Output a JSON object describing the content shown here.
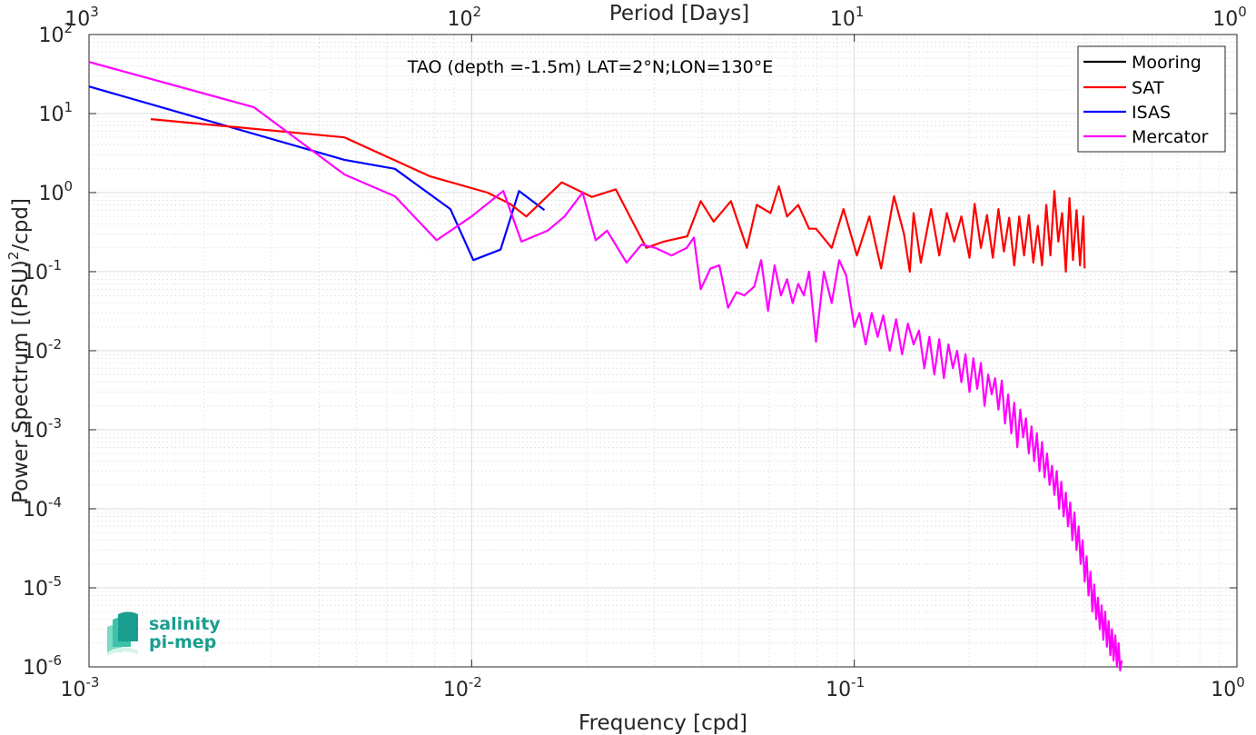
{
  "chart_data": {
    "type": "line",
    "title": "TAO (depth =-1.5m) LAT=2°N;LON=130°E",
    "xlabel": "Frequency [cpd]",
    "ylabel_main": "Power Spectrum [(PSU)",
    "ylabel_sup": "2",
    "ylabel_tail": "/cpd]",
    "top_axis_label": "Period [Days]",
    "x_scale": "log",
    "y_scale": "log",
    "xlim": [
      0.001,
      1
    ],
    "ylim": [
      1e-06,
      100
    ],
    "grid": true,
    "legend_position": "top-right",
    "x_ticks": [
      {
        "base": "10",
        "exp": "-3",
        "value": 0.001
      },
      {
        "base": "10",
        "exp": "-2",
        "value": 0.01
      },
      {
        "base": "10",
        "exp": "-1",
        "value": 0.1
      },
      {
        "base": "10",
        "exp": "0",
        "value": 1
      }
    ],
    "top_ticks": [
      {
        "base": "10",
        "exp": "3",
        "value": 0.001
      },
      {
        "base": "10",
        "exp": "2",
        "value": 0.01
      },
      {
        "base": "10",
        "exp": "1",
        "value": 0.1
      },
      {
        "base": "10",
        "exp": "0",
        "value": 1
      }
    ],
    "y_ticks": [
      {
        "base": "10",
        "exp": "2",
        "value": 100
      },
      {
        "base": "10",
        "exp": "1",
        "value": 10
      },
      {
        "base": "10",
        "exp": "0",
        "value": 1
      },
      {
        "base": "10",
        "exp": "-1",
        "value": 0.1
      },
      {
        "base": "10",
        "exp": "-2",
        "value": 0.01
      },
      {
        "base": "10",
        "exp": "-3",
        "value": 0.001
      },
      {
        "base": "10",
        "exp": "-4",
        "value": 0.0001
      },
      {
        "base": "10",
        "exp": "-5",
        "value": 1e-05
      },
      {
        "base": "10",
        "exp": "-6",
        "value": 1e-06
      }
    ],
    "series": [
      {
        "name": "Mooring",
        "color": "#000000",
        "x": [],
        "y": []
      },
      {
        "name": "SAT",
        "color": "#ff0000",
        "x": [
          0.00145,
          0.00465,
          0.0078,
          0.011,
          0.0126,
          0.0139,
          0.0172,
          0.0206,
          0.0238,
          0.0286,
          0.0318,
          0.0366,
          0.0397,
          0.0429,
          0.0476,
          0.0524,
          0.0556,
          0.0604,
          0.0635,
          0.0667,
          0.0714,
          0.0762,
          0.0794,
          0.0873,
          0.0937,
          0.1016,
          0.1095,
          0.1175,
          0.127,
          0.1349,
          0.1397,
          0.1429,
          0.1492,
          0.1587,
          0.1667,
          0.1746,
          0.1825,
          0.1905,
          0.2,
          0.2063,
          0.2143,
          0.2222,
          0.2302,
          0.2381,
          0.246,
          0.254,
          0.2619,
          0.2698,
          0.2778,
          0.2857,
          0.2937,
          0.3016,
          0.3095,
          0.3175,
          0.3254,
          0.3333,
          0.3413,
          0.3492,
          0.3571,
          0.3651,
          0.373,
          0.381,
          0.3889,
          0.3968,
          0.4
        ],
        "y": [
          8.5,
          5.0,
          1.6,
          1.0,
          0.72,
          0.5,
          1.35,
          0.88,
          1.1,
          0.2,
          0.24,
          0.28,
          0.78,
          0.43,
          0.78,
          0.2,
          0.7,
          0.55,
          1.2,
          0.5,
          0.7,
          0.35,
          0.35,
          0.2,
          0.62,
          0.16,
          0.5,
          0.11,
          0.9,
          0.3,
          0.1,
          0.55,
          0.13,
          0.62,
          0.16,
          0.55,
          0.24,
          0.5,
          0.15,
          0.72,
          0.2,
          0.52,
          0.15,
          0.62,
          0.18,
          0.48,
          0.12,
          0.5,
          0.16,
          0.52,
          0.13,
          0.38,
          0.12,
          0.7,
          0.16,
          1.05,
          0.24,
          0.55,
          0.1,
          0.85,
          0.14,
          0.6,
          0.12,
          0.5,
          0.11
        ]
      },
      {
        "name": "ISAS",
        "color": "#0000ff",
        "x": [
          0.001,
          0.00465,
          0.0063,
          0.0088,
          0.0101,
          0.0119,
          0.0133,
          0.0155
        ],
        "y": [
          22,
          2.6,
          2.0,
          0.62,
          0.14,
          0.19,
          1.05,
          0.6
        ]
      },
      {
        "name": "Mercator",
        "color": "#ff00ff",
        "x": [
          0.001,
          0.0027,
          0.00465,
          0.0063,
          0.0081,
          0.01,
          0.0121,
          0.0135,
          0.0158,
          0.0175,
          0.0195,
          0.0211,
          0.0226,
          0.0254,
          0.0278,
          0.0302,
          0.0333,
          0.0365,
          0.0381,
          0.0397,
          0.0421,
          0.0444,
          0.0468,
          0.0492,
          0.0516,
          0.0548,
          0.0571,
          0.0595,
          0.0619,
          0.0643,
          0.0667,
          0.069,
          0.0714,
          0.0738,
          0.0762,
          0.0794,
          0.0833,
          0.0873,
          0.0913,
          0.0952,
          0.1,
          0.1032,
          0.1071,
          0.1111,
          0.1151,
          0.119,
          0.1238,
          0.1286,
          0.1333,
          0.1381,
          0.1429,
          0.1476,
          0.1524,
          0.1571,
          0.1619,
          0.1667,
          0.1714,
          0.1762,
          0.181,
          0.1857,
          0.1905,
          0.1952,
          0.2,
          0.2048,
          0.2095,
          0.2143,
          0.219,
          0.2238,
          0.2286,
          0.2333,
          0.2381,
          0.2429,
          0.2476,
          0.2524,
          0.2571,
          0.2619,
          0.2667,
          0.2714,
          0.2762,
          0.281,
          0.2857,
          0.2905,
          0.2952,
          0.3,
          0.3048,
          0.3095,
          0.3143,
          0.319,
          0.3238,
          0.3286,
          0.3333,
          0.3381,
          0.3429,
          0.3476,
          0.3524,
          0.3571,
          0.3619,
          0.3667,
          0.3714,
          0.3762,
          0.381,
          0.3857,
          0.3905,
          0.3952,
          0.4,
          0.4048,
          0.4095,
          0.4143,
          0.419,
          0.4238,
          0.4286,
          0.4333,
          0.4381,
          0.4429,
          0.4476,
          0.4524,
          0.4571,
          0.4619,
          0.4667,
          0.4714,
          0.4762,
          0.481,
          0.4857,
          0.4905,
          0.4952,
          0.5
        ],
        "y": [
          45,
          12,
          1.7,
          0.9,
          0.25,
          0.5,
          1.05,
          0.24,
          0.33,
          0.5,
          1.0,
          0.25,
          0.33,
          0.13,
          0.22,
          0.2,
          0.16,
          0.2,
          0.27,
          0.06,
          0.11,
          0.12,
          0.035,
          0.055,
          0.05,
          0.065,
          0.14,
          0.032,
          0.12,
          0.05,
          0.08,
          0.04,
          0.07,
          0.05,
          0.1,
          0.013,
          0.1,
          0.04,
          0.14,
          0.09,
          0.02,
          0.03,
          0.012,
          0.03,
          0.015,
          0.028,
          0.01,
          0.025,
          0.009,
          0.022,
          0.012,
          0.018,
          0.006,
          0.015,
          0.005,
          0.014,
          0.0045,
          0.012,
          0.006,
          0.01,
          0.004,
          0.009,
          0.003,
          0.008,
          0.0033,
          0.007,
          0.002,
          0.005,
          0.0028,
          0.0045,
          0.0018,
          0.0042,
          0.0012,
          0.0028,
          0.0009,
          0.0022,
          0.0006,
          0.0018,
          0.0008,
          0.0014,
          0.0005,
          0.0011,
          0.0004,
          0.0009,
          0.0003,
          0.0007,
          0.00025,
          0.0005,
          0.0002,
          0.00035,
          0.00015,
          0.0003,
          0.0001,
          0.00022,
          8e-05,
          0.00016,
          6e-05,
          0.00012,
          4e-05,
          9e-05,
          3e-05,
          6e-05,
          2e-05,
          4e-05,
          1.2e-05,
          2.5e-05,
          8e-06,
          1.6e-05,
          5e-06,
          1.1e-05,
          4e-06,
          7.5e-06,
          3e-06,
          6e-06,
          2.2e-06,
          5e-06,
          1.8e-06,
          3.8e-06,
          1.4e-06,
          3e-06,
          1.2e-06,
          2.5e-06,
          1e-06,
          2e-06,
          9e-07,
          1.2e-06
        ]
      }
    ]
  },
  "logo": {
    "line1": "salinity",
    "line2": "pi-mep",
    "colors": [
      "#1a9e8f",
      "#3cc2a8",
      "#7adbc4"
    ]
  }
}
